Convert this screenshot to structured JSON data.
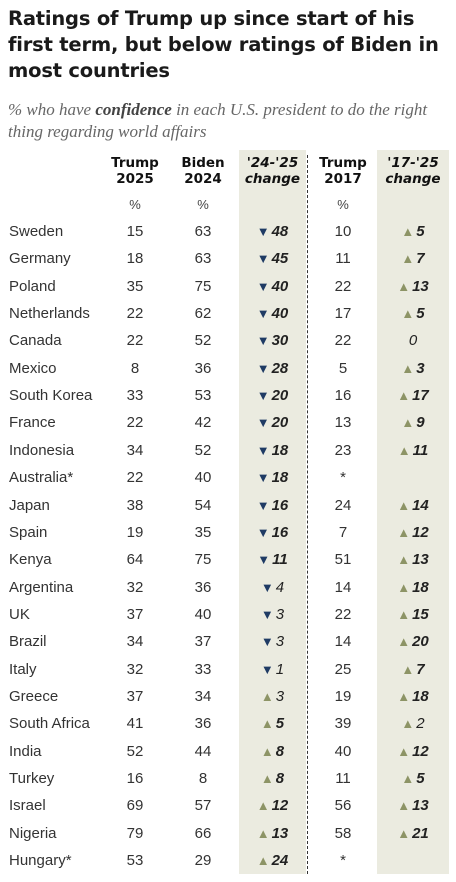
{
  "title": "Ratings of Trump up since start of his first term, but below ratings of Biden in most countries",
  "subtitle_pre": "% who have ",
  "subtitle_bold": "confidence",
  "subtitle_post": " in each U.S. president to do the right thing regarding world affairs",
  "headers": {
    "trump2025": "Trump\n2025",
    "biden2024": "Biden\n2024",
    "change2425": "'24-'25\nchange",
    "trump2017": "Trump\n2017",
    "change1725": "'17-'25\nchange",
    "pct": "%"
  },
  "colors": {
    "down": "#1f3b64",
    "up": "#8d9466",
    "shade": "#ebebe0"
  },
  "chart_data": {
    "type": "table",
    "columns": [
      "Trump 2025",
      "Biden 2024",
      "'24-'25 change",
      "Trump 2017",
      "'17-'25 change"
    ],
    "rows": [
      {
        "country": "Sweden",
        "trump2025": "15",
        "biden2024": "63",
        "change2425": "48",
        "dir2425": "down",
        "sig2425": true,
        "trump2017": "10",
        "change1725": "5",
        "dir1725": "up",
        "sig1725": true
      },
      {
        "country": "Germany",
        "trump2025": "18",
        "biden2024": "63",
        "change2425": "45",
        "dir2425": "down",
        "sig2425": true,
        "trump2017": "11",
        "change1725": "7",
        "dir1725": "up",
        "sig1725": true
      },
      {
        "country": "Poland",
        "trump2025": "35",
        "biden2024": "75",
        "change2425": "40",
        "dir2425": "down",
        "sig2425": true,
        "trump2017": "22",
        "change1725": "13",
        "dir1725": "up",
        "sig1725": true
      },
      {
        "country": "Netherlands",
        "trump2025": "22",
        "biden2024": "62",
        "change2425": "40",
        "dir2425": "down",
        "sig2425": true,
        "trump2017": "17",
        "change1725": "5",
        "dir1725": "up",
        "sig1725": true
      },
      {
        "country": "Canada",
        "trump2025": "22",
        "biden2024": "52",
        "change2425": "30",
        "dir2425": "down",
        "sig2425": true,
        "trump2017": "22",
        "change1725": "0",
        "dir1725": "none",
        "sig1725": false
      },
      {
        "country": "Mexico",
        "trump2025": "8",
        "biden2024": "36",
        "change2425": "28",
        "dir2425": "down",
        "sig2425": true,
        "trump2017": "5",
        "change1725": "3",
        "dir1725": "up",
        "sig1725": true
      },
      {
        "country": "South Korea",
        "trump2025": "33",
        "biden2024": "53",
        "change2425": "20",
        "dir2425": "down",
        "sig2425": true,
        "trump2017": "16",
        "change1725": "17",
        "dir1725": "up",
        "sig1725": true
      },
      {
        "country": "France",
        "trump2025": "22",
        "biden2024": "42",
        "change2425": "20",
        "dir2425": "down",
        "sig2425": true,
        "trump2017": "13",
        "change1725": "9",
        "dir1725": "up",
        "sig1725": true
      },
      {
        "country": "Indonesia",
        "trump2025": "34",
        "biden2024": "52",
        "change2425": "18",
        "dir2425": "down",
        "sig2425": true,
        "trump2017": "23",
        "change1725": "11",
        "dir1725": "up",
        "sig1725": true
      },
      {
        "country": "Australia*",
        "trump2025": "22",
        "biden2024": "40",
        "change2425": "18",
        "dir2425": "down",
        "sig2425": true,
        "trump2017": "*",
        "change1725": "",
        "dir1725": "none",
        "sig1725": false
      },
      {
        "country": "Japan",
        "trump2025": "38",
        "biden2024": "54",
        "change2425": "16",
        "dir2425": "down",
        "sig2425": true,
        "trump2017": "24",
        "change1725": "14",
        "dir1725": "up",
        "sig1725": true
      },
      {
        "country": "Spain",
        "trump2025": "19",
        "biden2024": "35",
        "change2425": "16",
        "dir2425": "down",
        "sig2425": true,
        "trump2017": "7",
        "change1725": "12",
        "dir1725": "up",
        "sig1725": true
      },
      {
        "country": "Kenya",
        "trump2025": "64",
        "biden2024": "75",
        "change2425": "11",
        "dir2425": "down",
        "sig2425": true,
        "trump2017": "51",
        "change1725": "13",
        "dir1725": "up",
        "sig1725": true
      },
      {
        "country": "Argentina",
        "trump2025": "32",
        "biden2024": "36",
        "change2425": "4",
        "dir2425": "down",
        "sig2425": false,
        "trump2017": "14",
        "change1725": "18",
        "dir1725": "up",
        "sig1725": true
      },
      {
        "country": "UK",
        "trump2025": "37",
        "biden2024": "40",
        "change2425": "3",
        "dir2425": "down",
        "sig2425": false,
        "trump2017": "22",
        "change1725": "15",
        "dir1725": "up",
        "sig1725": true
      },
      {
        "country": "Brazil",
        "trump2025": "34",
        "biden2024": "37",
        "change2425": "3",
        "dir2425": "down",
        "sig2425": false,
        "trump2017": "14",
        "change1725": "20",
        "dir1725": "up",
        "sig1725": true
      },
      {
        "country": "Italy",
        "trump2025": "32",
        "biden2024": "33",
        "change2425": "1",
        "dir2425": "down",
        "sig2425": false,
        "trump2017": "25",
        "change1725": "7",
        "dir1725": "up",
        "sig1725": true
      },
      {
        "country": "Greece",
        "trump2025": "37",
        "biden2024": "34",
        "change2425": "3",
        "dir2425": "up",
        "sig2425": false,
        "trump2017": "19",
        "change1725": "18",
        "dir1725": "up",
        "sig1725": true
      },
      {
        "country": "South Africa",
        "trump2025": "41",
        "biden2024": "36",
        "change2425": "5",
        "dir2425": "up",
        "sig2425": true,
        "trump2017": "39",
        "change1725": "2",
        "dir1725": "up",
        "sig1725": false
      },
      {
        "country": "India",
        "trump2025": "52",
        "biden2024": "44",
        "change2425": "8",
        "dir2425": "up",
        "sig2425": true,
        "trump2017": "40",
        "change1725": "12",
        "dir1725": "up",
        "sig1725": true
      },
      {
        "country": "Turkey",
        "trump2025": "16",
        "biden2024": "8",
        "change2425": "8",
        "dir2425": "up",
        "sig2425": true,
        "trump2017": "11",
        "change1725": "5",
        "dir1725": "up",
        "sig1725": true
      },
      {
        "country": "Israel",
        "trump2025": "69",
        "biden2024": "57",
        "change2425": "12",
        "dir2425": "up",
        "sig2425": true,
        "trump2017": "56",
        "change1725": "13",
        "dir1725": "up",
        "sig1725": true
      },
      {
        "country": "Nigeria",
        "trump2025": "79",
        "biden2024": "66",
        "change2425": "13",
        "dir2425": "up",
        "sig2425": true,
        "trump2017": "58",
        "change1725": "21",
        "dir1725": "up",
        "sig1725": true
      },
      {
        "country": "Hungary*",
        "trump2025": "53",
        "biden2024": "29",
        "change2425": "24",
        "dir2425": "up",
        "sig2425": true,
        "trump2017": "*",
        "change1725": "",
        "dir1725": "none",
        "sig1725": false
      }
    ]
  }
}
